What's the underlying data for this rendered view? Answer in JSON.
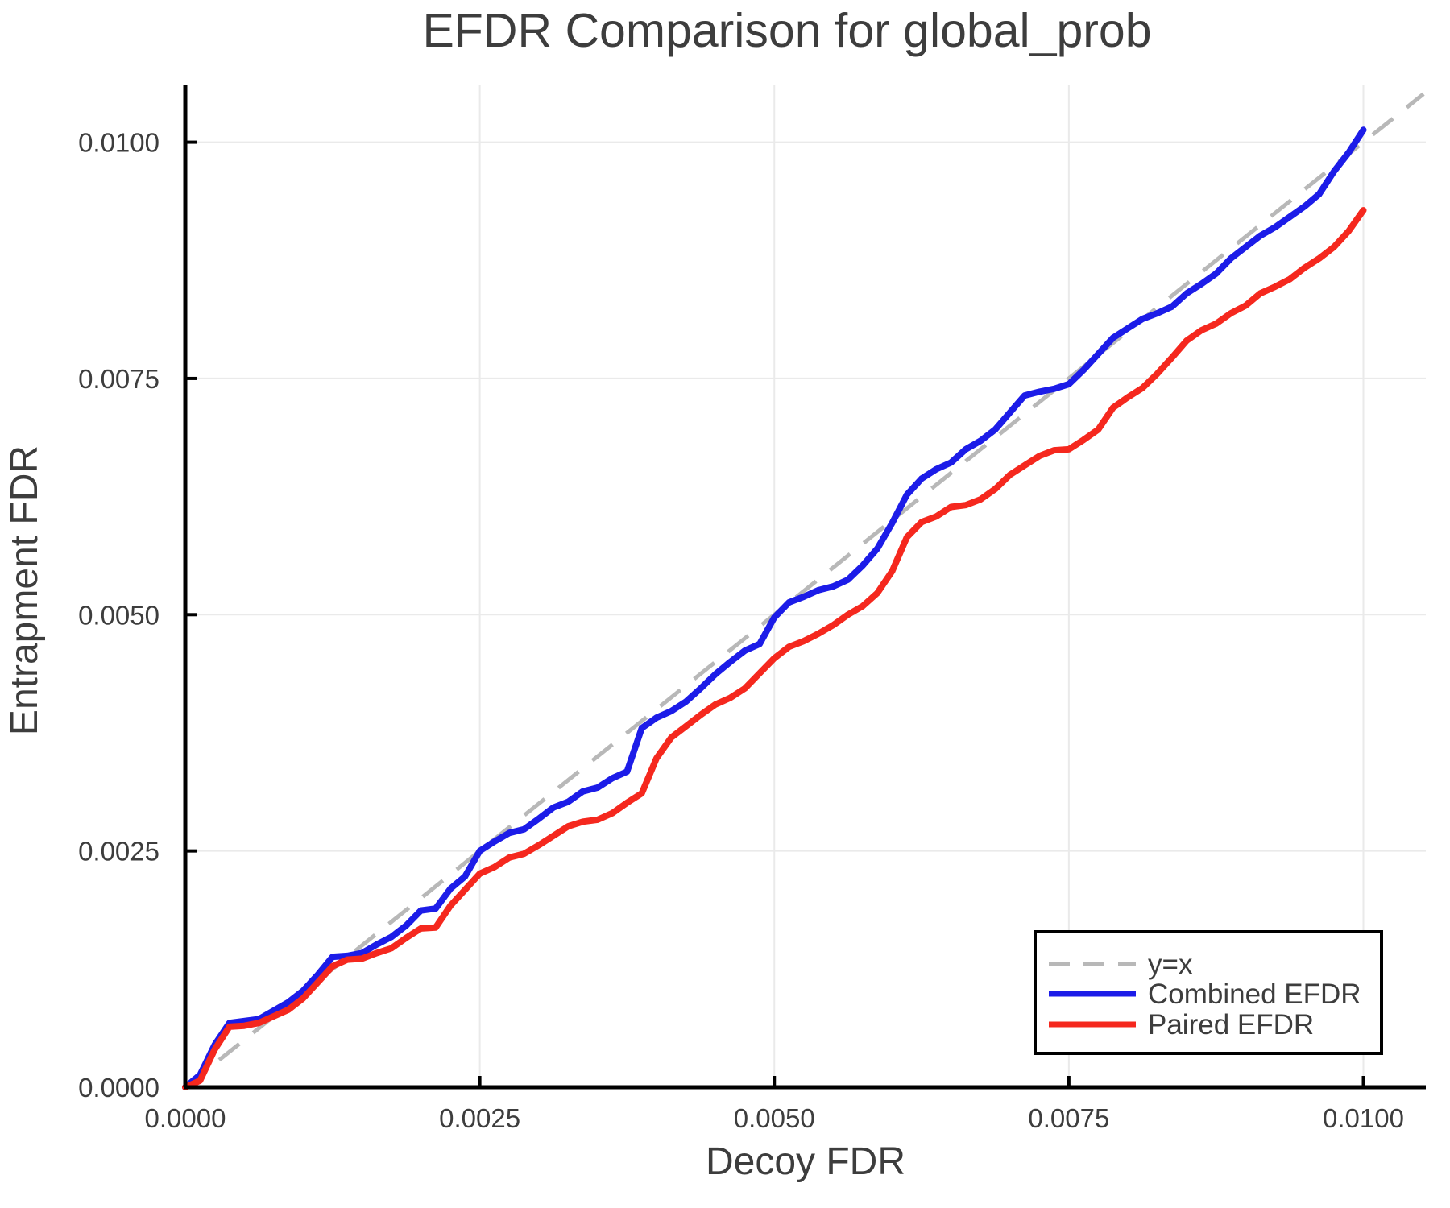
{
  "title": "EFDR Comparison for global_prob",
  "axes": {
    "xlabel": "Decoy FDR",
    "ylabel": "Entrapment FDR",
    "xticks": [
      {
        "value": 0.0,
        "label": "0.0000"
      },
      {
        "value": 0.0025,
        "label": "0.0025"
      },
      {
        "value": 0.005,
        "label": "0.0050"
      },
      {
        "value": 0.0075,
        "label": "0.0075"
      },
      {
        "value": 0.01,
        "label": "0.0100"
      }
    ],
    "yticks": [
      {
        "value": 0.0,
        "label": "0.0000"
      },
      {
        "value": 0.0025,
        "label": "0.0025"
      },
      {
        "value": 0.005,
        "label": "0.0050"
      },
      {
        "value": 0.0075,
        "label": "0.0075"
      },
      {
        "value": 0.01,
        "label": "0.0100"
      }
    ],
    "xlim": [
      0,
      0.01053
    ],
    "ylim": [
      0,
      0.01061
    ],
    "grid": true
  },
  "legend": {
    "position": "bottom-right",
    "items": [
      {
        "label": "y=x",
        "color": "#b8b8b8",
        "dashed": true
      },
      {
        "label": "Combined EFDR",
        "color": "#1c1ce8",
        "dashed": false
      },
      {
        "label": "Paired EFDR",
        "color": "#f5281e",
        "dashed": false
      }
    ]
  },
  "colors": {
    "background": "#ffffff",
    "grid": "#eaeaea",
    "axis": "#000000",
    "text": "#3d3d3d",
    "reference": "#b8b8b8",
    "combined": "#1c1ce8",
    "paired": "#f5281e"
  },
  "chart_data": {
    "type": "line",
    "title": "EFDR Comparison for global_prob",
    "xlabel": "Decoy FDR",
    "ylabel": "Entrapment FDR",
    "xlim": [
      0,
      0.01053
    ],
    "ylim": [
      0,
      0.01061
    ],
    "grid": true,
    "legend_position": "bottom-right",
    "reference_line": {
      "name": "y=x",
      "style": "dashed",
      "color": "#b8b8b8",
      "from": [
        0,
        0
      ],
      "to": [
        0.01051,
        0.01051
      ]
    },
    "x": [
      0,
      0.000125,
      0.00025,
      0.000375,
      0.0005,
      0.000625,
      0.00075,
      0.000875,
      0.001,
      0.001125,
      0.00125,
      0.001375,
      0.0015,
      0.001625,
      0.00175,
      0.001875,
      0.002,
      0.002125,
      0.00225,
      0.002375,
      0.0025,
      0.002625,
      0.00275,
      0.002875,
      0.003,
      0.003125,
      0.00325,
      0.003375,
      0.0035,
      0.003625,
      0.00375,
      0.003875,
      0.004,
      0.004125,
      0.00425,
      0.004375,
      0.0045,
      0.004625,
      0.00475,
      0.004875,
      0.005,
      0.005125,
      0.00525,
      0.005375,
      0.0055,
      0.005625,
      0.00575,
      0.005875,
      0.006,
      0.006125,
      0.00625,
      0.006375,
      0.0065,
      0.006625,
      0.00675,
      0.006875,
      0.007,
      0.007125,
      0.00725,
      0.007375,
      0.0075,
      0.007625,
      0.00775,
      0.007875,
      0.008,
      0.008125,
      0.00825,
      0.008375,
      0.0085,
      0.008625,
      0.00875,
      0.008875,
      0.009,
      0.009125,
      0.00925,
      0.009375,
      0.0095,
      0.009625,
      0.00975,
      0.009875,
      0.01
    ],
    "series": [
      {
        "name": "Combined EFDR",
        "style": "solid",
        "color": "#1c1ce8",
        "y": [
          0,
          0.00013,
          0.00045,
          0.00068,
          0.0007,
          0.00072,
          0.00081,
          0.0009,
          0.00102,
          0.00119,
          0.00138,
          0.00139,
          0.00142,
          0.00151,
          0.00159,
          0.00171,
          0.00187,
          0.00189,
          0.0021,
          0.00223,
          0.0025,
          0.0026,
          0.00269,
          0.00273,
          0.00284,
          0.00296,
          0.00302,
          0.00313,
          0.00317,
          0.00327,
          0.00334,
          0.0038,
          0.00391,
          0.00398,
          0.00408,
          0.00422,
          0.00437,
          0.0045,
          0.00462,
          0.00469,
          0.00497,
          0.00513,
          0.00519,
          0.00526,
          0.0053,
          0.00537,
          0.00552,
          0.0057,
          0.00597,
          0.00627,
          0.00644,
          0.00654,
          0.00661,
          0.00675,
          0.00684,
          0.00696,
          0.00714,
          0.00732,
          0.00736,
          0.00739,
          0.00744,
          0.00759,
          0.00776,
          0.00793,
          0.00803,
          0.00813,
          0.00819,
          0.00826,
          0.0084,
          0.0085,
          0.00861,
          0.00877,
          0.00889,
          0.00901,
          0.0091,
          0.00921,
          0.00932,
          0.00945,
          0.00969,
          0.00989,
          0.01013
        ]
      },
      {
        "name": "Paired EFDR",
        "style": "solid",
        "color": "#f5281e",
        "y": [
          0,
          7e-05,
          0.0004,
          0.00064,
          0.00065,
          0.00068,
          0.00075,
          0.00082,
          0.00094,
          0.00111,
          0.00128,
          0.00135,
          0.00136,
          0.00142,
          0.00147,
          0.00158,
          0.00168,
          0.00169,
          0.00192,
          0.00209,
          0.00226,
          0.00233,
          0.00243,
          0.00247,
          0.00256,
          0.00266,
          0.00276,
          0.00281,
          0.00283,
          0.0029,
          0.00301,
          0.00311,
          0.00348,
          0.0037,
          0.00382,
          0.00394,
          0.00405,
          0.00412,
          0.00422,
          0.00438,
          0.00454,
          0.00466,
          0.00472,
          0.0048,
          0.00489,
          0.005,
          0.00509,
          0.00523,
          0.00546,
          0.00582,
          0.00598,
          0.00604,
          0.00614,
          0.00616,
          0.00622,
          0.00633,
          0.00648,
          0.00658,
          0.00668,
          0.00674,
          0.00675,
          0.00685,
          0.00696,
          0.00719,
          0.0073,
          0.0074,
          0.00755,
          0.00772,
          0.0079,
          0.00801,
          0.00808,
          0.00819,
          0.00827,
          0.0084,
          0.00847,
          0.00855,
          0.00867,
          0.00877,
          0.00889,
          0.00906,
          0.00928
        ]
      }
    ]
  }
}
